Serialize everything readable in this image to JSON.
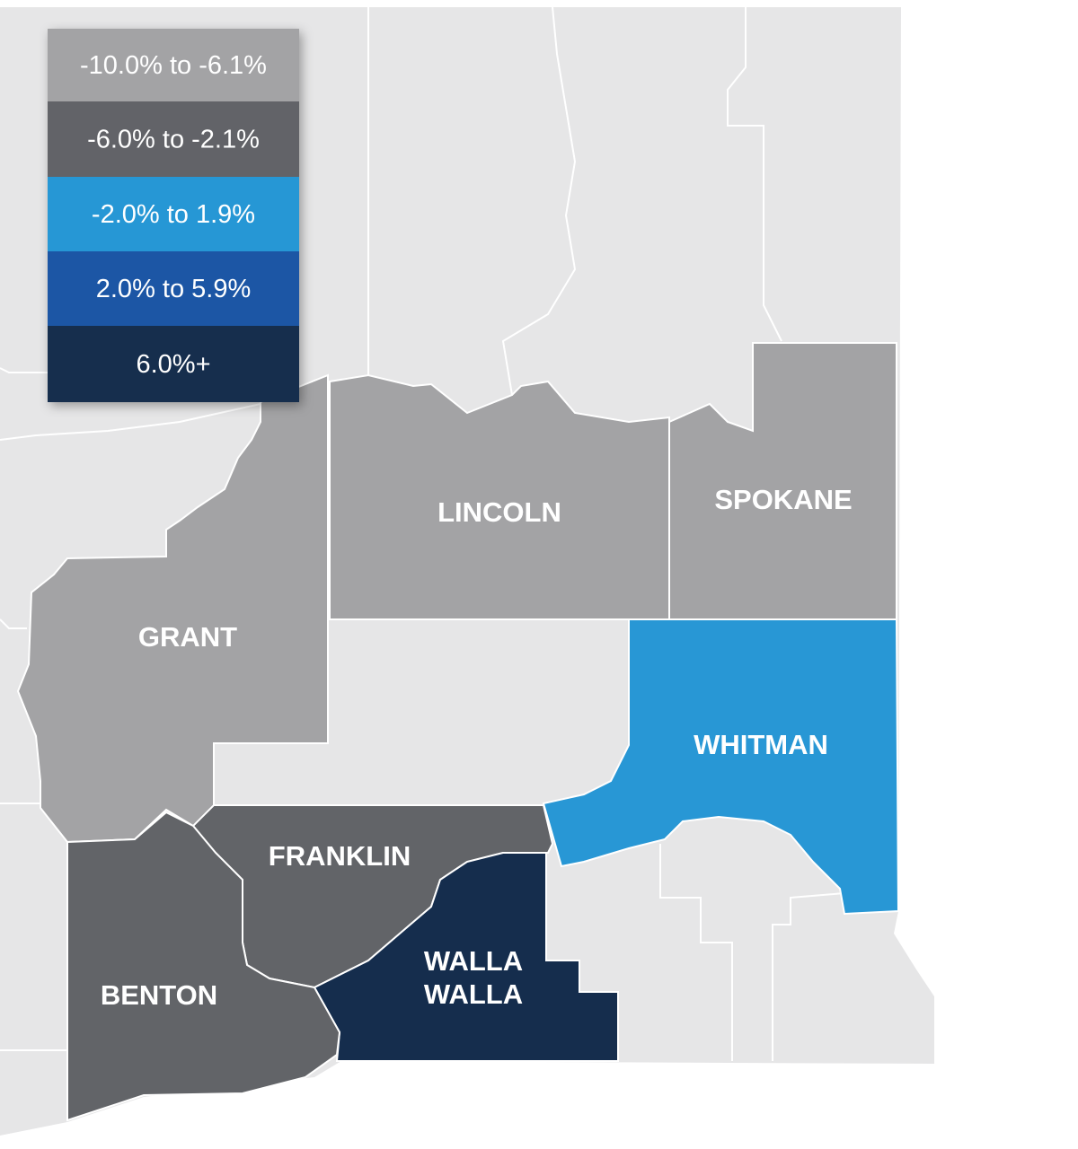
{
  "legend": {
    "items": [
      {
        "label": "-10.0% to -6.1%",
        "color": "#a3a3a5"
      },
      {
        "label": "-6.0% to -2.1%",
        "color": "#626468"
      },
      {
        "label": "-2.0% to 1.9%",
        "color": "#2897d5"
      },
      {
        "label": "2.0% to 5.9%",
        "color": "#1a57a5"
      },
      {
        "label": "6.0%+",
        "color": "#152d4d"
      }
    ]
  },
  "counties": [
    {
      "lines": [
        "LINCOLN"
      ],
      "color": "#a3a3a5"
    },
    {
      "lines": [
        "SPOKANE"
      ],
      "color": "#a3a3a5"
    },
    {
      "lines": [
        "GRANT"
      ],
      "color": "#a3a3a5"
    },
    {
      "lines": [
        "WHITMAN"
      ],
      "color": "#2897d5"
    },
    {
      "lines": [
        "FRANKLIN"
      ],
      "color": "#626468"
    },
    {
      "lines": [
        "WALLA",
        "WALLA"
      ],
      "color": "#152d4d"
    },
    {
      "lines": [
        "BENTON"
      ],
      "color": "#626468"
    }
  ]
}
